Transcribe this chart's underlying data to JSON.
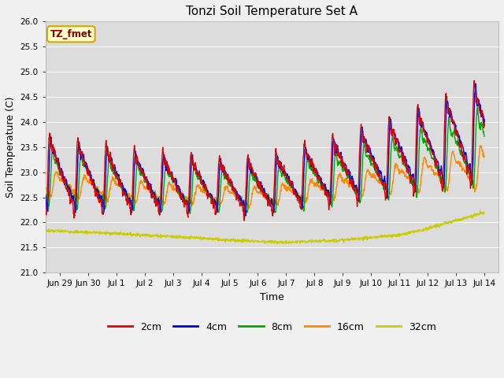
{
  "title": "Tonzi Soil Temperature Set A",
  "xlabel": "Time",
  "ylabel": "Soil Temperature (C)",
  "ylim": [
    21.0,
    26.0
  ],
  "yticks": [
    21.0,
    21.5,
    22.0,
    22.5,
    23.0,
    23.5,
    24.0,
    24.5,
    25.0,
    25.5,
    26.0
  ],
  "legend_label": "TZ_fmet",
  "colors": {
    "2cm": "#dd0000",
    "4cm": "#0000cc",
    "8cm": "#00aa00",
    "16cm": "#ff8800",
    "32cm": "#cccc00"
  },
  "bg_color": "#dcdcdc",
  "grid_color": "#ffffff",
  "fig_bg": "#f0f0f0",
  "annotation_bg": "#ffffcc",
  "annotation_border": "#ccaa00",
  "tick_labels": [
    "Jun 29",
    "Jun 30",
    "Jul 1",
    "Jul 2",
    "Jul 3",
    "Jul 4",
    "Jul 5",
    "Jul 6",
    "Jul 7",
    "Jul 8",
    "Jul 9",
    "Jul 10",
    "Jul 11",
    "Jul 12",
    "Jul 13",
    "Jul 14"
  ],
  "tick_positions": [
    1,
    2,
    3,
    4,
    5,
    6,
    7,
    8,
    9,
    10,
    11,
    12,
    13,
    14,
    15,
    16
  ],
  "xlim": [
    0.5,
    16.5
  ]
}
